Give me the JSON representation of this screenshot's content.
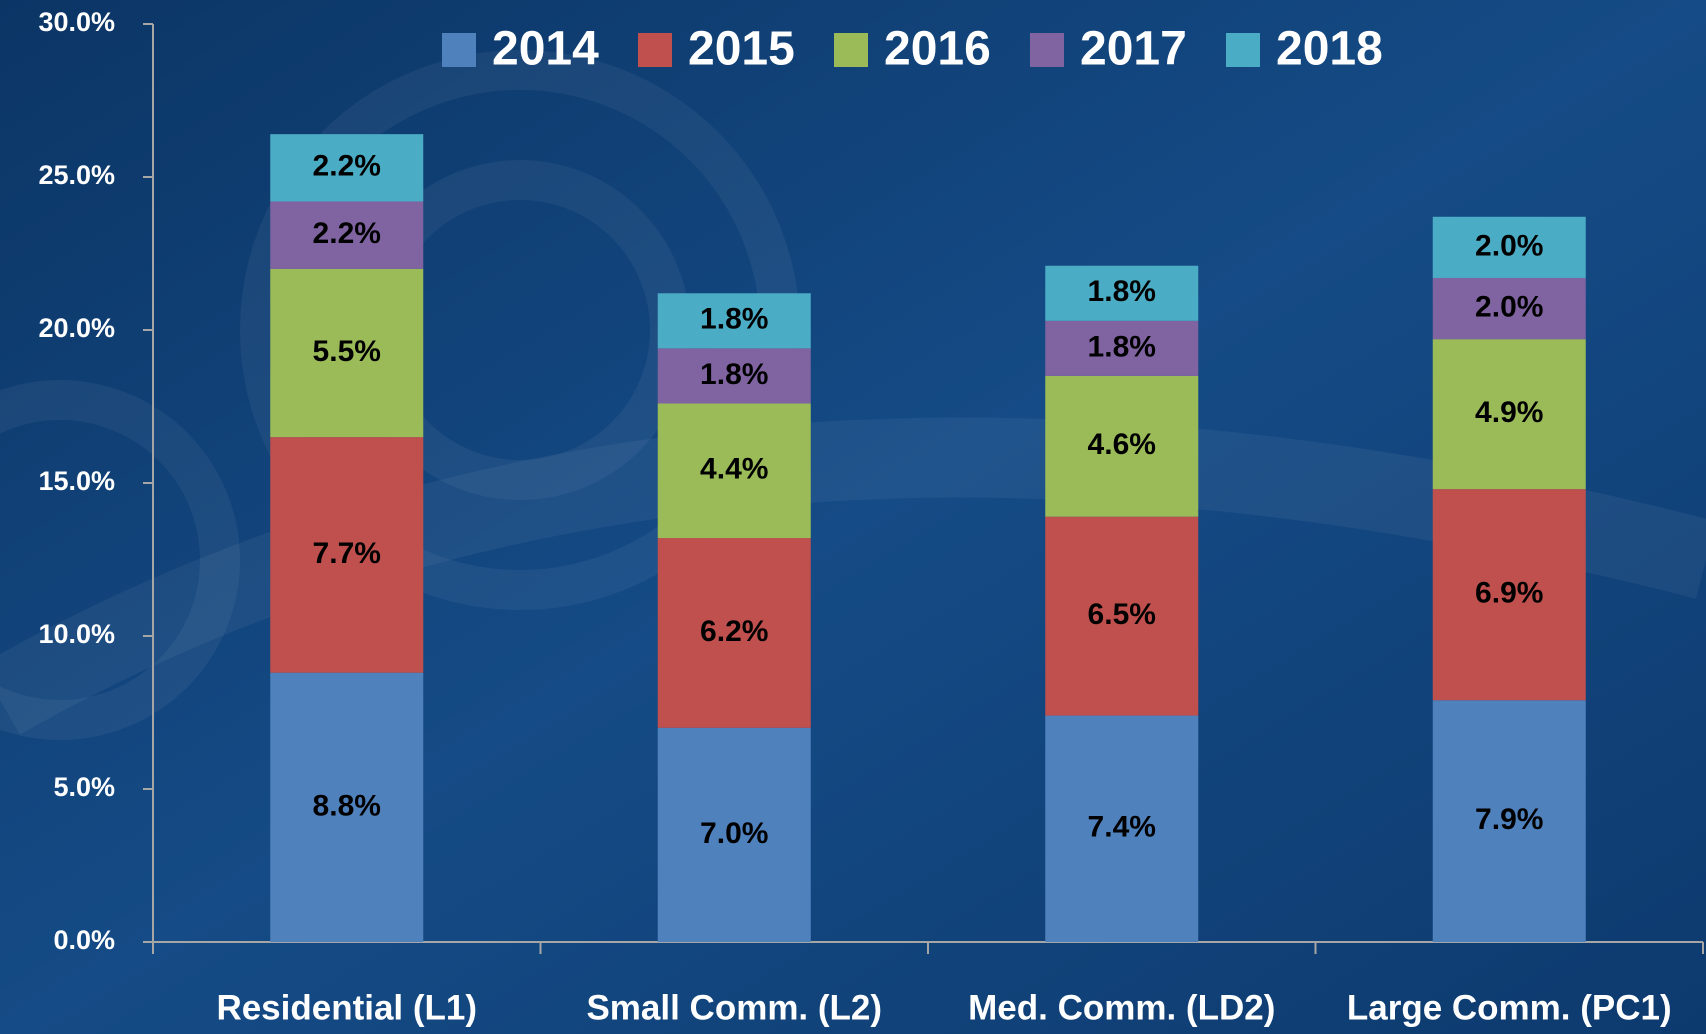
{
  "chart_data": {
    "type": "stacked_bar",
    "categories": [
      "Residential (L1)",
      "Small Comm. (L2)",
      "Med. Comm. (LD2)",
      "Large Comm. (PC1)"
    ],
    "series": [
      {
        "name": "2014",
        "color": "#4f81bd",
        "values": [
          8.8,
          7.0,
          7.4,
          7.9
        ],
        "value_labels": [
          "8.8%",
          "7.0%",
          "7.4%",
          "7.9%"
        ]
      },
      {
        "name": "2015",
        "color": "#c0504d",
        "values": [
          7.7,
          6.2,
          6.5,
          6.9
        ],
        "value_labels": [
          "7.7%",
          "6.2%",
          "6.5%",
          "6.9%"
        ]
      },
      {
        "name": "2016",
        "color": "#9bbb59",
        "values": [
          5.5,
          4.4,
          4.6,
          4.9
        ],
        "value_labels": [
          "5.5%",
          "4.4%",
          "4.6%",
          "4.9%"
        ]
      },
      {
        "name": "2017",
        "color": "#8064a2",
        "values": [
          2.2,
          1.8,
          1.8,
          2.0
        ],
        "value_labels": [
          "2.2%",
          "1.8%",
          "1.8%",
          "2.0%"
        ]
      },
      {
        "name": "2018",
        "color": "#4bacc6",
        "values": [
          2.2,
          1.8,
          1.8,
          2.0
        ],
        "value_labels": [
          "2.2%",
          "1.8%",
          "1.8%",
          "2.0%"
        ]
      }
    ],
    "ylim": [
      0,
      30
    ],
    "yticks": [
      {
        "value": 0,
        "label": "0.0%"
      },
      {
        "value": 5,
        "label": "5.0%"
      },
      {
        "value": 10,
        "label": "10.0%"
      },
      {
        "value": 15,
        "label": "15.0%"
      },
      {
        "value": 20,
        "label": "20.0%"
      },
      {
        "value": 25,
        "label": "25.0%"
      },
      {
        "value": 30,
        "label": "30.0%"
      }
    ],
    "legend": "top"
  }
}
